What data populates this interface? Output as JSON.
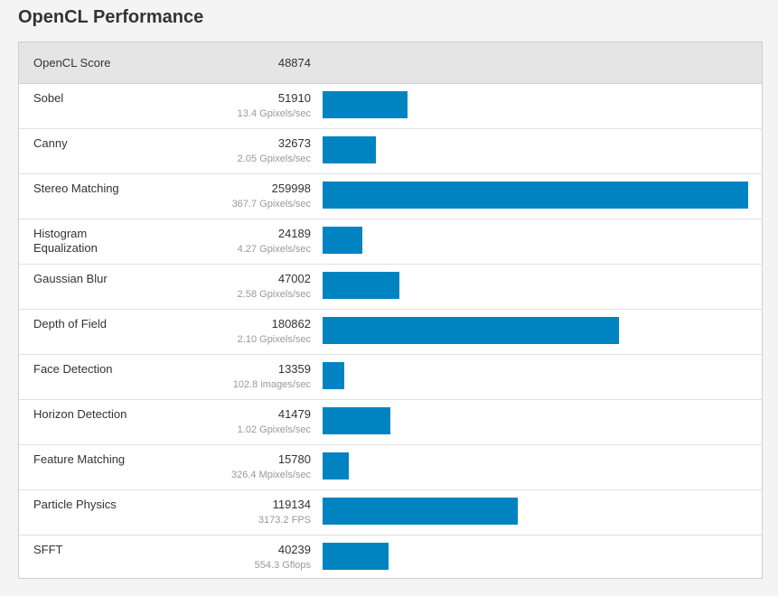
{
  "page": {
    "title": "OpenCL Performance"
  },
  "colors": {
    "bar": "#0084c1",
    "header_bg": "#e5e5e5",
    "secondary_text": "#999999"
  },
  "chart_data": {
    "type": "bar",
    "orientation": "horizontal",
    "title": "OpenCL Performance",
    "summary": {
      "label": "OpenCL Score",
      "value": 48874
    },
    "xlim": [
      0,
      259998
    ],
    "categories": [
      "Sobel",
      "Canny",
      "Stereo Matching",
      "Histogram Equalization",
      "Gaussian Blur",
      "Depth of Field",
      "Face Detection",
      "Horizon Detection",
      "Feature Matching",
      "Particle Physics",
      "SFFT"
    ],
    "values": [
      51910,
      32673,
      259998,
      24189,
      47002,
      180862,
      13359,
      41479,
      15780,
      119134,
      40239
    ],
    "rates": [
      "13.4 Gpixels/sec",
      "2.05 Gpixels/sec",
      "367.7 Gpixels/sec",
      "4.27 Gpixels/sec",
      "2.58 Gpixels/sec",
      "2.10 Gpixels/sec",
      "102.8 images/sec",
      "1.02 Gpixels/sec",
      "326.4 Mpixels/sec",
      "3173.2 FPS",
      "554.3 Gflops"
    ]
  }
}
